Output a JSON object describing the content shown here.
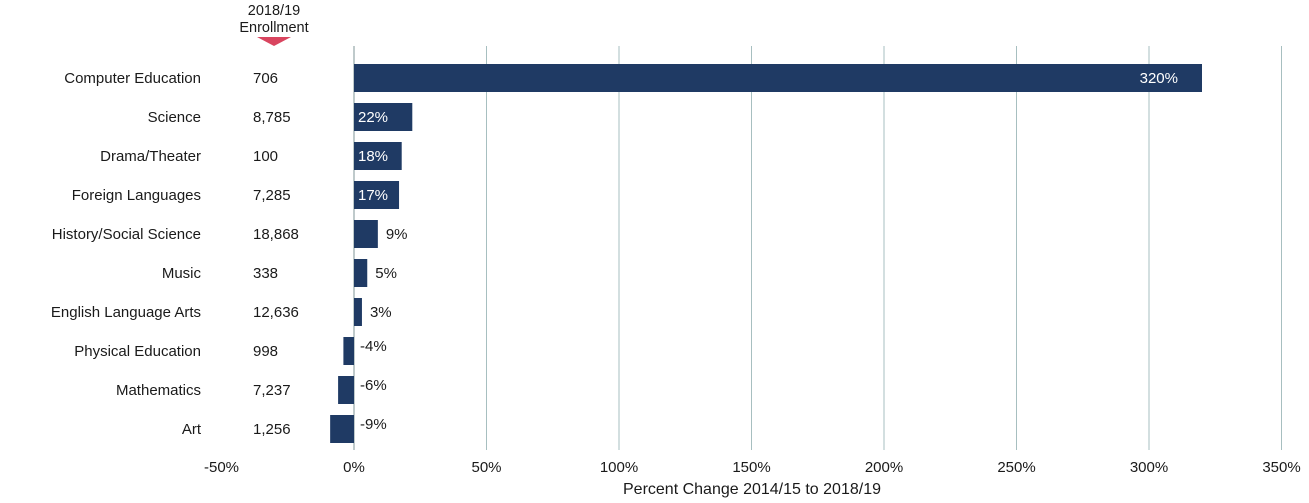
{
  "chart_data": {
    "type": "bar",
    "orientation": "horizontal",
    "column_header": "2018/19\nEnrollment",
    "categories": [
      "Computer Education",
      "Science",
      "Drama/Theater",
      "Foreign Languages",
      "History/Social Science",
      "Music",
      "English Language Arts",
      "Physical Education",
      "Mathematics",
      "Art"
    ],
    "enrollment": [
      "706",
      "8,785",
      "100",
      "7,285",
      "18,868",
      "338",
      "12,636",
      "998",
      "7,237",
      "1,256"
    ],
    "values": [
      320,
      22,
      18,
      17,
      9,
      5,
      3,
      -4,
      -6,
      -9
    ],
    "value_labels": [
      "320%",
      "22%",
      "18%",
      "17%",
      "9%",
      "5%",
      "3%",
      "-4%",
      "-6%",
      "-9%"
    ],
    "xlabel": "Percent Change 2014/15 to 2018/19",
    "xlim": [
      -50,
      350
    ],
    "xticks": [
      -50,
      0,
      50,
      100,
      150,
      200,
      250,
      300,
      350
    ],
    "xtick_labels": [
      "-50%",
      "0%",
      "50%",
      "100%",
      "150%",
      "200%",
      "250%",
      "300%",
      "350%"
    ],
    "grid": true,
    "colors": {
      "bar": "#1f3a64",
      "grid": "#a7bfc0",
      "header_marker": "#d9455f"
    }
  }
}
